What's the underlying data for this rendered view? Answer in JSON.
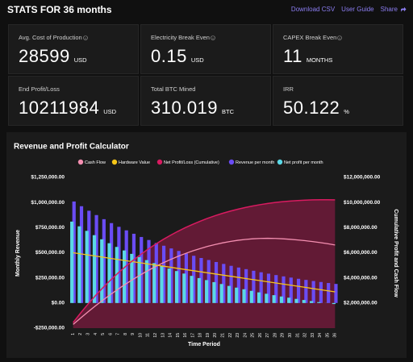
{
  "header": {
    "title": "STATS FOR 36 months",
    "links": [
      "Download CSV",
      "User Guide",
      "Share"
    ]
  },
  "stats": [
    {
      "label": "Avg. Cost of Production",
      "value": 28599,
      "unit": "USD"
    },
    {
      "label": "Electricity Break Even",
      "value": 0.15,
      "unit": "USD"
    },
    {
      "label": "CAPEX Break Even",
      "value": 11,
      "unit": "MONTHS"
    },
    {
      "label": "End Profit/Loss",
      "value": 10211984,
      "unit": "USD"
    },
    {
      "label": "Total BTC Mined",
      "value": 310.019,
      "unit": "BTC"
    },
    {
      "label": "IRR",
      "value": 50.122,
      "unit": "%"
    }
  ],
  "chart_data": {
    "type": "bar",
    "title": "Revenue and Profit Calculator",
    "x_label": "Time Period",
    "y_label": "Monthly Revenue",
    "y2_label": "Cumulative Profit and Cash Flow",
    "categories": [
      "1",
      "2",
      "3",
      "4",
      "5",
      "6",
      "7",
      "8",
      "9",
      "10",
      "11",
      "12",
      "13",
      "14",
      "15",
      "16",
      "17",
      "18",
      "19",
      "20",
      "21",
      "22",
      "23",
      "24",
      "25",
      "26",
      "27",
      "28",
      "29",
      "30",
      "31",
      "32",
      "33",
      "34",
      "35",
      "36"
    ],
    "ylim": [
      -250000,
      1250000
    ],
    "yticks": [
      {
        "value": 1250000,
        "label": "$1,250,000.00"
      },
      {
        "value": 1000000,
        "label": "$1,000,000.00"
      },
      {
        "value": 750000,
        "label": "$750,000.00"
      },
      {
        "value": 500000,
        "label": "$500,000.00"
      },
      {
        "value": 250000,
        "label": "$250,000.00"
      },
      {
        "value": 0,
        "label": "$0.00"
      },
      {
        "value": -250000,
        "label": "-$250,000.00"
      }
    ],
    "y2lim": [
      0,
      12000000
    ],
    "y2ticks": [
      {
        "value": 12000000,
        "label": "$12,000,000.00"
      },
      {
        "value": 10000000,
        "label": "$10,000,000.00"
      },
      {
        "value": 8000000,
        "label": "$8,000,000.00"
      },
      {
        "value": 6000000,
        "label": "$6,000,000.00"
      },
      {
        "value": 4000000,
        "label": "$4,000,000.00"
      },
      {
        "value": 2000000,
        "label": "$2,000,000.00"
      }
    ],
    "series": [
      {
        "name": "Cash Flow",
        "color": "#f48fb1",
        "type": "line",
        "axis": "y2",
        "values": [
          300000,
          800000,
          1300000,
          1780000,
          2240000,
          2680000,
          3100000,
          3500000,
          3880000,
          4240000,
          4580000,
          4900000,
          5190000,
          5460000,
          5710000,
          5940000,
          6150000,
          6340000,
          6510000,
          6660000,
          6790000,
          6900000,
          6990000,
          7060000,
          7110000,
          7140000,
          7150000,
          7140000,
          7110000,
          7070000,
          7020000,
          6960000,
          6890000,
          6810000,
          6720000,
          6620000
        ]
      },
      {
        "name": "Hardware Value",
        "color": "#f5c518",
        "type": "line",
        "values": [
          500000,
          489000,
          478000,
          467000,
          456000,
          444000,
          433000,
          422000,
          411000,
          400000,
          389000,
          378000,
          367000,
          356000,
          344000,
          333000,
          322000,
          311000,
          300000,
          289000,
          278000,
          267000,
          256000,
          244000,
          233000,
          222000,
          211000,
          200000,
          189000,
          178000,
          167000,
          156000,
          144000,
          133000,
          122000,
          111000
        ]
      },
      {
        "name": "Net Profit/Loss (Cumulative)",
        "color": "#d81b60",
        "type": "area",
        "axis": "y2",
        "values": [
          440000,
          1203000,
          1921000,
          2596000,
          3230000,
          3825000,
          4383000,
          4906000,
          5395000,
          5852000,
          6279000,
          6676000,
          7046000,
          7389000,
          7707000,
          8000000,
          8270000,
          8518000,
          8746000,
          8954000,
          9143000,
          9313000,
          9466000,
          9603000,
          9724000,
          9830000,
          9922000,
          10000000,
          10065000,
          10118000,
          10159000,
          10189000,
          10208000,
          10217000,
          10216000,
          10211984
        ]
      },
      {
        "name": "Revenue per month",
        "color": "#6a4cf5",
        "type": "bar",
        "values": [
          1010000,
          963000,
          918000,
          875000,
          834000,
          795000,
          758000,
          723000,
          689000,
          657000,
          627000,
          597000,
          570000,
          543000,
          518000,
          493000,
          470000,
          448000,
          428000,
          408000,
          389000,
          370000,
          353000,
          337000,
          321000,
          306000,
          292000,
          278000,
          265000,
          253000,
          241000,
          230000,
          219000,
          209000,
          199000,
          190000
        ]
      },
      {
        "name": "Net profit per month",
        "color": "#5ad8e6",
        "type": "bar",
        "values": [
          810000,
          763000,
          718000,
          675000,
          634000,
          595000,
          558000,
          523000,
          489000,
          457000,
          427000,
          397000,
          370000,
          343000,
          318000,
          293000,
          270000,
          248000,
          228000,
          208000,
          189000,
          170000,
          153000,
          137000,
          121000,
          106000,
          92000,
          78000,
          65000,
          53000,
          41000,
          30000,
          19000,
          9000,
          -1000,
          -10000
        ]
      }
    ]
  }
}
